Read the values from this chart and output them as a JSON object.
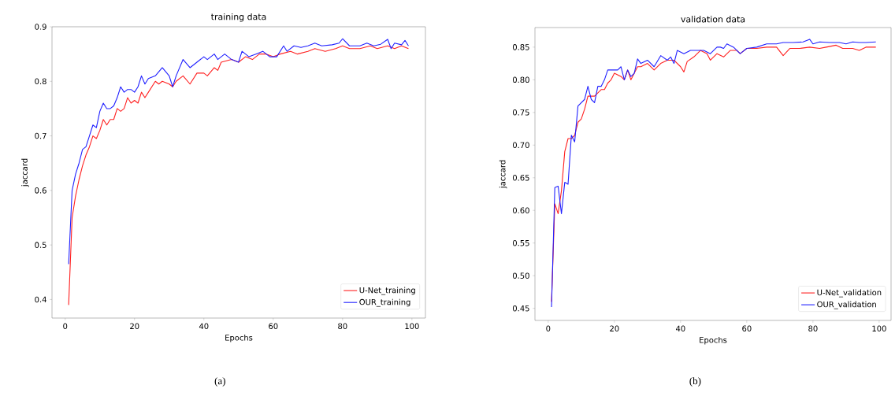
{
  "chart_data": [
    {
      "type": "line",
      "title": "training data",
      "xlabel": "Epochs",
      "ylabel": "jaccard",
      "xlim": [
        -3.8,
        103.9
      ],
      "ylim": [
        0.366,
        0.9
      ],
      "xticks": [
        0,
        20,
        40,
        60,
        80,
        100
      ],
      "yticks": [
        0.4,
        0.5,
        0.6,
        0.7,
        0.8,
        0.9
      ],
      "legend": "bottom right",
      "annotations": [
        "(a)"
      ],
      "series": [
        {
          "name": "U-Net_training",
          "color": "#ff2020",
          "x": [
            1,
            2,
            3,
            4,
            5,
            6,
            7,
            8,
            9,
            10,
            11,
            12,
            13,
            14,
            15,
            16,
            17,
            18,
            19,
            20,
            21,
            22,
            23,
            24,
            26,
            27,
            28,
            30,
            31,
            32,
            34,
            36,
            38,
            40,
            41,
            43,
            44,
            45,
            48,
            50,
            52,
            54,
            56,
            58,
            60,
            62,
            65,
            67,
            70,
            72,
            75,
            78,
            80,
            82,
            85,
            88,
            90,
            93,
            95,
            97,
            99
          ],
          "values": [
            0.39,
            0.55,
            0.59,
            0.62,
            0.645,
            0.665,
            0.68,
            0.7,
            0.695,
            0.71,
            0.73,
            0.72,
            0.73,
            0.73,
            0.75,
            0.745,
            0.75,
            0.77,
            0.76,
            0.765,
            0.76,
            0.78,
            0.77,
            0.78,
            0.8,
            0.795,
            0.8,
            0.795,
            0.79,
            0.8,
            0.81,
            0.795,
            0.815,
            0.815,
            0.81,
            0.825,
            0.82,
            0.835,
            0.84,
            0.835,
            0.845,
            0.84,
            0.85,
            0.85,
            0.845,
            0.85,
            0.855,
            0.85,
            0.855,
            0.86,
            0.855,
            0.86,
            0.865,
            0.86,
            0.86,
            0.865,
            0.86,
            0.865,
            0.86,
            0.865,
            0.86
          ]
        },
        {
          "name": "OUR_training",
          "color": "#2020ff",
          "x": [
            1,
            2,
            3,
            4,
            5,
            6,
            7,
            8,
            9,
            10,
            11,
            12,
            13,
            14,
            15,
            16,
            17,
            18,
            19,
            20,
            21,
            22,
            23,
            24,
            26,
            28,
            30,
            31,
            32,
            34,
            36,
            38,
            40,
            41,
            43,
            44,
            46,
            48,
            50,
            51,
            53,
            55,
            57,
            59,
            61,
            63,
            64,
            66,
            68,
            70,
            72,
            74,
            77,
            79,
            80,
            82,
            85,
            87,
            89,
            91,
            93,
            94,
            95,
            97,
            98,
            99
          ],
          "values": [
            0.465,
            0.6,
            0.63,
            0.65,
            0.675,
            0.68,
            0.7,
            0.72,
            0.715,
            0.745,
            0.76,
            0.75,
            0.75,
            0.755,
            0.77,
            0.79,
            0.78,
            0.785,
            0.785,
            0.78,
            0.79,
            0.81,
            0.795,
            0.805,
            0.81,
            0.825,
            0.81,
            0.79,
            0.81,
            0.84,
            0.825,
            0.835,
            0.845,
            0.84,
            0.85,
            0.84,
            0.85,
            0.84,
            0.835,
            0.855,
            0.845,
            0.85,
            0.855,
            0.845,
            0.845,
            0.865,
            0.855,
            0.865,
            0.862,
            0.865,
            0.87,
            0.865,
            0.867,
            0.87,
            0.878,
            0.865,
            0.865,
            0.87,
            0.865,
            0.868,
            0.877,
            0.86,
            0.87,
            0.867,
            0.875,
            0.865
          ]
        }
      ]
    },
    {
      "type": "line",
      "title": "validation data",
      "xlabel": "Epochs",
      "ylabel": "jaccard",
      "xlim": [
        -4.0,
        103.6
      ],
      "ylim": [
        0.4315,
        0.88
      ],
      "xticks": [
        0,
        20,
        40,
        60,
        80,
        100
      ],
      "yticks": [
        {
          "value": 0.45,
          "label": "0.45"
        },
        {
          "value": 0.5,
          "label": "0.50"
        },
        {
          "value": 0.55,
          "label": "0.55"
        },
        {
          "value": 0.6,
          "label": "0.60"
        },
        {
          "value": 0.65,
          "label": "0.65"
        },
        {
          "value": 0.7,
          "label": "0.70"
        },
        {
          "value": 0.75,
          "label": "0.75"
        },
        {
          "value": 0.8,
          "label": "0.80"
        },
        {
          "value": 0.85,
          "label": "0.85"
        }
      ],
      "legend": "bottom right",
      "annotations": [
        "(b)"
      ],
      "series": [
        {
          "name": "U-Net_validation",
          "color": "#ff2020",
          "x": [
            1,
            2,
            3,
            4,
            5,
            6,
            7,
            8,
            9,
            10,
            11,
            12,
            13,
            14,
            15,
            16,
            17,
            18,
            19,
            20,
            22,
            23,
            24,
            25,
            27,
            28,
            30,
            32,
            34,
            36,
            38,
            40,
            41,
            42,
            44,
            46,
            48,
            49,
            51,
            53,
            55,
            57,
            58,
            60,
            63,
            66,
            69,
            71,
            73,
            76,
            79,
            82,
            84,
            87,
            89,
            92,
            94,
            96,
            99
          ],
          "values": [
            0.46,
            0.61,
            0.595,
            0.63,
            0.69,
            0.71,
            0.71,
            0.715,
            0.735,
            0.74,
            0.755,
            0.775,
            0.775,
            0.775,
            0.78,
            0.785,
            0.785,
            0.795,
            0.8,
            0.81,
            0.805,
            0.8,
            0.815,
            0.8,
            0.82,
            0.82,
            0.825,
            0.815,
            0.825,
            0.83,
            0.83,
            0.82,
            0.812,
            0.828,
            0.835,
            0.845,
            0.84,
            0.83,
            0.84,
            0.835,
            0.845,
            0.845,
            0.84,
            0.848,
            0.848,
            0.85,
            0.85,
            0.837,
            0.848,
            0.848,
            0.85,
            0.848,
            0.85,
            0.853,
            0.848,
            0.848,
            0.845,
            0.85,
            0.85
          ]
        },
        {
          "name": "OUR_validation",
          "color": "#2020ff",
          "x": [
            1,
            2,
            3,
            4,
            5,
            6,
            7,
            8,
            9,
            10,
            11,
            12,
            13,
            14,
            15,
            16,
            17,
            18,
            20,
            21,
            22,
            23,
            24,
            25,
            26,
            27,
            28,
            30,
            32,
            34,
            36,
            37,
            38,
            39,
            41,
            43,
            45,
            47,
            49,
            51,
            52,
            53,
            54,
            56,
            58,
            60,
            63,
            66,
            69,
            71,
            74,
            77,
            79,
            80,
            82,
            85,
            88,
            90,
            92,
            94,
            96,
            99
          ],
          "values": [
            0.452,
            0.635,
            0.637,
            0.595,
            0.643,
            0.64,
            0.715,
            0.705,
            0.76,
            0.765,
            0.77,
            0.79,
            0.77,
            0.765,
            0.79,
            0.79,
            0.8,
            0.815,
            0.815,
            0.815,
            0.82,
            0.8,
            0.815,
            0.805,
            0.81,
            0.832,
            0.825,
            0.83,
            0.82,
            0.837,
            0.83,
            0.835,
            0.825,
            0.845,
            0.84,
            0.845,
            0.845,
            0.845,
            0.84,
            0.85,
            0.85,
            0.848,
            0.855,
            0.85,
            0.84,
            0.848,
            0.85,
            0.855,
            0.855,
            0.857,
            0.857,
            0.858,
            0.862,
            0.855,
            0.858,
            0.857,
            0.857,
            0.855,
            0.858,
            0.857,
            0.857,
            0.858
          ]
        }
      ]
    }
  ]
}
